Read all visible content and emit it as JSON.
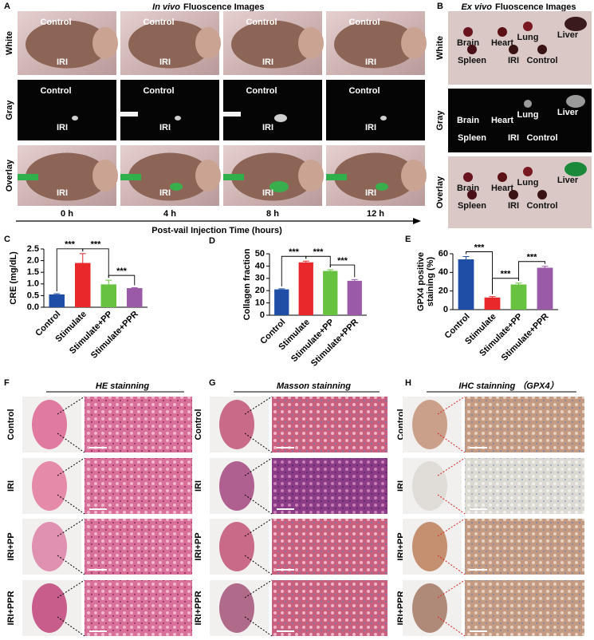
{
  "panel_letters": [
    "A",
    "B",
    "C",
    "D",
    "E",
    "F",
    "G",
    "H"
  ],
  "panel_a": {
    "title_italic": "In vivo",
    "title": "Fluoscence Images",
    "rows": [
      "White",
      "Gray",
      "Overlay"
    ],
    "times": [
      "0 h",
      "4 h",
      "8 h",
      "12 h"
    ],
    "axis_label": "Post-vail Injection Time (hours)",
    "control_label": "Control",
    "iri_label": "IRI"
  },
  "panel_b": {
    "title_italic": "Ex vivo",
    "title": "Fluoscence Images",
    "rows": [
      "White",
      "Gray",
      "Overlay"
    ],
    "organs": [
      "Brain",
      "Heart",
      "Lung",
      "Liver",
      "Spleen",
      "IRI",
      "Control"
    ]
  },
  "chart_data": [
    {
      "type": "bar",
      "y_label": "CRE (mg/dL)",
      "categories": [
        "Control",
        "Stimulate",
        "Stimulate+PP",
        "Stimulate+PPR"
      ],
      "values": [
        0.55,
        1.9,
        0.98,
        0.82
      ],
      "errors": [
        0.03,
        0.4,
        0.18,
        0.02
      ],
      "colors": [
        "#1f4ea6",
        "#e8282b",
        "#67c23f",
        "#9a5aa8"
      ],
      "ylim": [
        0,
        2.5
      ],
      "yticks": [
        {
          "value": 0,
          "label": "0.0"
        },
        0.5,
        {
          "value": 1,
          "label": "1.0"
        },
        1.5,
        {
          "value": 2,
          "label": "2.0"
        },
        2.5
      ],
      "annotations": [
        "***",
        "***",
        "***"
      ]
    },
    {
      "type": "bar",
      "y_label": "Collagen  fraction",
      "categories": [
        "Control",
        "Stimulate",
        "Stimulate+PP",
        "Stimulate+PPR"
      ],
      "values": [
        21,
        43,
        36,
        28
      ],
      "errors": [
        0.5,
        1,
        1,
        1
      ],
      "colors": [
        "#1f4ea6",
        "#e8282b",
        "#67c23f",
        "#9a5aa8"
      ],
      "ylim": [
        0,
        50
      ],
      "yticks": [
        0,
        10,
        20,
        30,
        40,
        50
      ],
      "annotations": [
        "***",
        "***",
        "***"
      ]
    },
    {
      "type": "bar",
      "y_label": [
        "GPX4 positive",
        "staining (%)"
      ],
      "categories": [
        "Control",
        "Stimulate",
        "Stimulate+PP",
        "Stimulate+PPR"
      ],
      "values": [
        54,
        13,
        27,
        45
      ],
      "errors": [
        3,
        1,
        1.5,
        1.5
      ],
      "colors": [
        "#1f4ea6",
        "#e8282b",
        "#67c23f",
        "#9a5aa8"
      ],
      "ylim": [
        0,
        60
      ],
      "yticks": [
        0,
        20,
        40,
        60
      ],
      "annotations": [
        "***",
        "***",
        "***"
      ]
    }
  ],
  "histology": {
    "columns": [
      "HE stainning",
      "Masson stainning",
      "IHC stainning （GPX4）"
    ],
    "rows": [
      "Control",
      "IRI",
      "IRI+PP",
      "IRI+PPR"
    ]
  }
}
